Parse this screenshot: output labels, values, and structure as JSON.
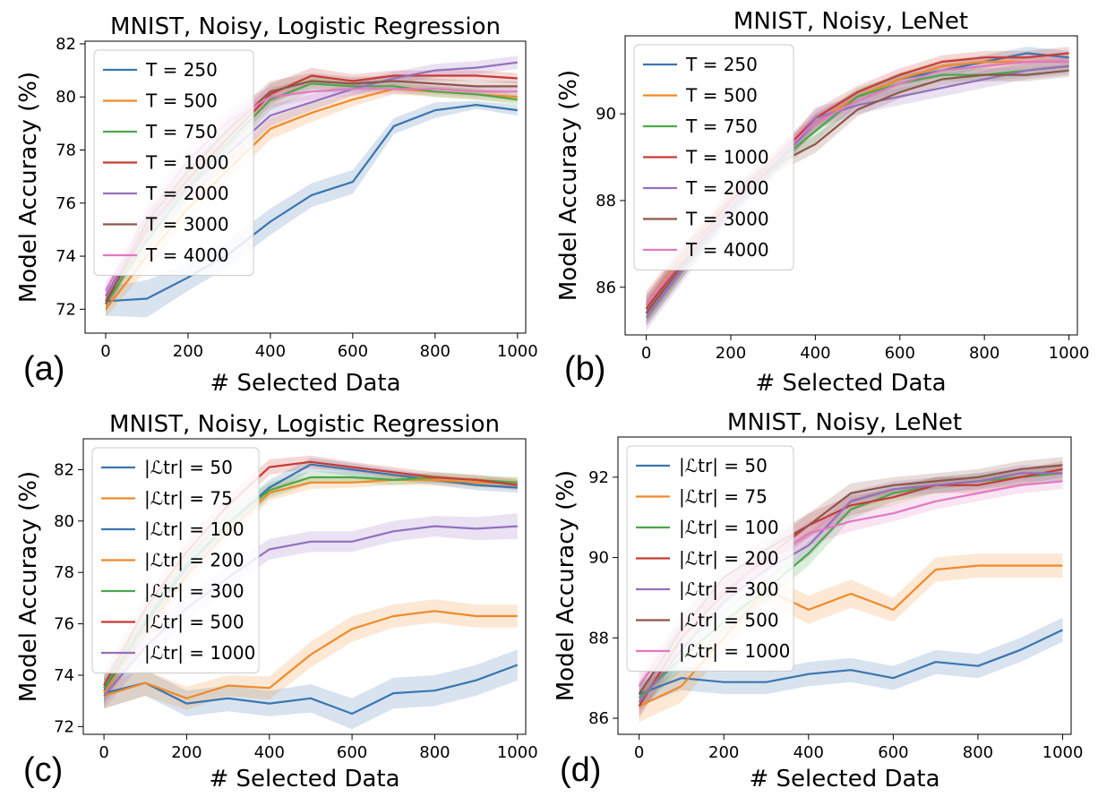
{
  "chart_data": [
    {
      "type": "line",
      "panel_label": "(a)",
      "title": "MNIST, Noisy, Logistic Regression",
      "xlabel": "# Selected Data",
      "ylabel": "Model Accuracy (%)",
      "xlim": [
        -50,
        1020
      ],
      "ylim": [
        71.1,
        82.1
      ],
      "xticks": [
        "0",
        "200",
        "400",
        "600",
        "800",
        "1000"
      ],
      "xtick_values": [
        0,
        200,
        400,
        600,
        800,
        1000
      ],
      "yticks": [
        "72",
        "74",
        "76",
        "78",
        "80",
        "82"
      ],
      "ytick_values": [
        72,
        74,
        76,
        78,
        80,
        82
      ],
      "legend_position": "upper-left",
      "x": [
        0,
        100,
        200,
        300,
        400,
        500,
        600,
        700,
        800,
        900,
        1000
      ],
      "series": [
        {
          "name": "T = 250",
          "color": "#3a75af",
          "band": [
            0.55,
            0.7,
            0.5,
            0.5,
            0.5,
            0.45,
            0.45,
            0.3,
            0.3,
            0.15,
            0.2
          ],
          "values": [
            72.3,
            72.4,
            73.2,
            74.1,
            75.3,
            76.3,
            76.8,
            78.9,
            79.5,
            79.7,
            79.5
          ]
        },
        {
          "name": "T = 500",
          "color": "#f08a28",
          "band": [
            0.3,
            0.5,
            0.5,
            0.45,
            0.4,
            0.35,
            0.25,
            0.2,
            0.2,
            0.2,
            0.2
          ],
          "values": [
            72.0,
            74.0,
            75.8,
            77.3,
            78.8,
            79.4,
            79.9,
            80.3,
            80.2,
            80.1,
            80.0
          ]
        },
        {
          "name": "T = 750",
          "color": "#4aa84a",
          "band": [
            0.3,
            0.5,
            0.5,
            0.45,
            0.4,
            0.3,
            0.25,
            0.2,
            0.2,
            0.2,
            0.2
          ],
          "values": [
            72.2,
            74.6,
            76.6,
            78.3,
            79.9,
            80.5,
            80.4,
            80.4,
            80.2,
            80.1,
            79.9
          ]
        },
        {
          "name": "T = 1000",
          "color": "#c83a35",
          "band": [
            0.3,
            0.5,
            0.5,
            0.45,
            0.4,
            0.3,
            0.25,
            0.2,
            0.2,
            0.2,
            0.2
          ],
          "values": [
            72.3,
            75.0,
            76.9,
            78.5,
            80.1,
            80.8,
            80.6,
            80.8,
            80.8,
            80.8,
            80.7
          ]
        },
        {
          "name": "T = 2000",
          "color": "#9470bd",
          "band": [
            0.3,
            0.5,
            0.5,
            0.45,
            0.4,
            0.3,
            0.25,
            0.25,
            0.25,
            0.25,
            0.25
          ],
          "values": [
            72.5,
            75.2,
            76.6,
            77.9,
            79.3,
            79.8,
            80.3,
            80.7,
            81.0,
            81.1,
            81.3
          ]
        },
        {
          "name": "T = 3000",
          "color": "#8c564b",
          "band": [
            0.3,
            0.5,
            0.5,
            0.45,
            0.4,
            0.3,
            0.25,
            0.2,
            0.2,
            0.2,
            0.2
          ],
          "values": [
            72.2,
            75.3,
            77.2,
            78.8,
            80.2,
            80.6,
            80.5,
            80.6,
            80.5,
            80.4,
            80.4
          ]
        },
        {
          "name": "T = 4000",
          "color": "#e377c2",
          "band": [
            0.3,
            0.5,
            0.5,
            0.45,
            0.4,
            0.3,
            0.25,
            0.2,
            0.2,
            0.2,
            0.2
          ],
          "values": [
            72.7,
            75.5,
            77.6,
            79.1,
            80.0,
            80.2,
            80.3,
            80.3,
            80.3,
            80.2,
            80.2
          ]
        }
      ]
    },
    {
      "type": "line",
      "panel_label": "(b)",
      "title": "MNIST, Noisy, LeNet",
      "xlabel": "# Selected Data",
      "ylabel": "Model Accuracy (%)",
      "xlim": [
        -50,
        1020
      ],
      "ylim": [
        84.9,
        91.8
      ],
      "xticks": [
        "0",
        "200",
        "400",
        "600",
        "800",
        "1000"
      ],
      "xtick_values": [
        0,
        200,
        400,
        600,
        800,
        1000
      ],
      "yticks": [
        "86",
        "88",
        "90"
      ],
      "ytick_values": [
        86,
        88,
        90
      ],
      "legend_position": "upper-left",
      "x": [
        0,
        100,
        200,
        300,
        400,
        500,
        600,
        700,
        800,
        900,
        1000
      ],
      "series": [
        {
          "name": "T = 250",
          "color": "#3a75af",
          "band": [
            0.3,
            0.3,
            0.25,
            0.2,
            0.2,
            0.15,
            0.15,
            0.15,
            0.15,
            0.15,
            0.15
          ],
          "values": [
            85.5,
            86.8,
            87.9,
            88.8,
            89.8,
            90.4,
            90.8,
            91.0,
            91.2,
            91.4,
            91.3
          ]
        },
        {
          "name": "T = 500",
          "color": "#f08a28",
          "band": [
            0.3,
            0.3,
            0.25,
            0.2,
            0.2,
            0.15,
            0.15,
            0.15,
            0.15,
            0.15,
            0.15
          ],
          "values": [
            85.6,
            86.9,
            88.0,
            88.9,
            89.8,
            90.4,
            90.8,
            91.1,
            91.2,
            91.2,
            91.2
          ]
        },
        {
          "name": "T = 750",
          "color": "#4aa84a",
          "band": [
            0.3,
            0.3,
            0.25,
            0.2,
            0.25,
            0.2,
            0.2,
            0.15,
            0.15,
            0.15,
            0.15
          ],
          "values": [
            85.4,
            86.7,
            87.9,
            88.8,
            89.6,
            90.4,
            90.7,
            90.9,
            90.9,
            91.0,
            91.1
          ]
        },
        {
          "name": "T = 1000",
          "color": "#c83a35",
          "band": [
            0.3,
            0.3,
            0.25,
            0.2,
            0.2,
            0.15,
            0.15,
            0.15,
            0.15,
            0.15,
            0.15
          ],
          "values": [
            85.5,
            86.8,
            88.0,
            88.9,
            89.9,
            90.5,
            90.9,
            91.2,
            91.3,
            91.3,
            91.4
          ]
        },
        {
          "name": "T = 2000",
          "color": "#9470bd",
          "band": [
            0.3,
            0.3,
            0.25,
            0.2,
            0.25,
            0.2,
            0.2,
            0.2,
            0.2,
            0.2,
            0.2
          ],
          "values": [
            85.3,
            86.6,
            87.8,
            88.7,
            89.9,
            90.2,
            90.4,
            90.6,
            90.8,
            91.0,
            91.1
          ]
        },
        {
          "name": "T = 3000",
          "color": "#8c564b",
          "band": [
            0.3,
            0.3,
            0.25,
            0.2,
            0.2,
            0.15,
            0.15,
            0.15,
            0.15,
            0.15,
            0.15
          ],
          "values": [
            85.4,
            86.7,
            87.9,
            88.8,
            89.3,
            90.1,
            90.5,
            90.8,
            90.9,
            90.9,
            91.0
          ]
        },
        {
          "name": "T = 4000",
          "color": "#e377c2",
          "band": [
            0.3,
            0.3,
            0.25,
            0.2,
            0.2,
            0.15,
            0.15,
            0.15,
            0.15,
            0.15,
            0.15
          ],
          "values": [
            85.6,
            86.8,
            87.9,
            88.9,
            89.8,
            90.3,
            90.7,
            91.0,
            91.1,
            91.2,
            91.2
          ]
        }
      ]
    },
    {
      "type": "line",
      "panel_label": "(c)",
      "title": "MNIST, Noisy, Logistic Regression",
      "xlabel": "# Selected Data",
      "ylabel": "Model Accuracy (%)",
      "xlim": [
        -50,
        1020
      ],
      "ylim": [
        71.7,
        83.2
      ],
      "xticks": [
        "0",
        "200",
        "400",
        "600",
        "800",
        "1000"
      ],
      "xtick_values": [
        0,
        200,
        400,
        600,
        800,
        1000
      ],
      "yticks": [
        "72",
        "74",
        "76",
        "78",
        "80",
        "82"
      ],
      "ytick_values": [
        72,
        74,
        76,
        78,
        80,
        82
      ],
      "legend_position": "upper-left",
      "x": [
        0,
        100,
        200,
        300,
        400,
        500,
        600,
        700,
        800,
        900,
        1000
      ],
      "series": [
        {
          "name": "|ℒtr| = 50",
          "color": "#3a75af",
          "band": [
            0.6,
            0.5,
            0.5,
            0.5,
            0.5,
            0.55,
            0.6,
            0.6,
            0.6,
            0.6,
            0.6
          ],
          "values": [
            73.3,
            73.7,
            72.9,
            73.1,
            72.9,
            73.1,
            72.5,
            73.3,
            73.4,
            73.8,
            74.4
          ]
        },
        {
          "name": "|ℒtr| = 75",
          "color": "#f08a28",
          "band": [
            0.5,
            0.5,
            0.45,
            0.4,
            0.45,
            0.5,
            0.5,
            0.45,
            0.45,
            0.45,
            0.45
          ],
          "values": [
            73.2,
            73.7,
            73.1,
            73.6,
            73.5,
            74.8,
            75.8,
            76.3,
            76.5,
            76.3,
            76.3
          ]
        },
        {
          "name": "|ℒtr| = 100",
          "color": "#3a75af",
          "band": [
            0.5,
            0.5,
            0.45,
            0.4,
            0.3,
            0.25,
            0.25,
            0.2,
            0.2,
            0.2,
            0.2
          ],
          "values": [
            73.4,
            76.0,
            78.2,
            79.9,
            81.3,
            82.2,
            82.0,
            81.8,
            81.6,
            81.4,
            81.3
          ]
        },
        {
          "name": "|ℒtr| = 200",
          "color": "#f08a28",
          "band": [
            0.5,
            0.5,
            0.45,
            0.4,
            0.3,
            0.25,
            0.2,
            0.2,
            0.2,
            0.2,
            0.2
          ],
          "values": [
            73.3,
            75.8,
            77.9,
            79.6,
            81.1,
            81.5,
            81.5,
            81.6,
            81.6,
            81.5,
            81.5
          ]
        },
        {
          "name": "|ℒtr| = 300",
          "color": "#4aa84a",
          "band": [
            0.5,
            0.5,
            0.45,
            0.4,
            0.3,
            0.25,
            0.2,
            0.2,
            0.2,
            0.2,
            0.2
          ],
          "values": [
            73.5,
            76.1,
            78.3,
            79.9,
            81.2,
            81.7,
            81.7,
            81.6,
            81.7,
            81.6,
            81.5
          ]
        },
        {
          "name": "|ℒtr| = 500",
          "color": "#c83a35",
          "band": [
            0.5,
            0.5,
            0.45,
            0.4,
            0.3,
            0.25,
            0.2,
            0.2,
            0.2,
            0.2,
            0.2
          ],
          "values": [
            73.6,
            76.6,
            78.8,
            80.6,
            82.1,
            82.3,
            82.1,
            81.9,
            81.7,
            81.6,
            81.4
          ]
        },
        {
          "name": "|ℒtr| = 1000",
          "color": "#9470bd",
          "band": [
            0.5,
            0.5,
            0.5,
            0.45,
            0.4,
            0.4,
            0.4,
            0.4,
            0.4,
            0.45,
            0.5
          ],
          "values": [
            73.2,
            75.1,
            76.6,
            77.8,
            78.9,
            79.2,
            79.2,
            79.6,
            79.8,
            79.7,
            79.8
          ]
        }
      ]
    },
    {
      "type": "line",
      "panel_label": "(d)",
      "title": "MNIST, Noisy, LeNet",
      "xlabel": "# Selected Data",
      "ylabel": "Model Accuracy (%)",
      "xlim": [
        -50,
        1020
      ],
      "ylim": [
        85.6,
        93.0
      ],
      "xticks": [
        "0",
        "200",
        "400",
        "600",
        "800",
        "1000"
      ],
      "xtick_values": [
        0,
        200,
        400,
        600,
        800,
        1000
      ],
      "yticks": [
        "86",
        "88",
        "90",
        "92"
      ],
      "ytick_values": [
        86,
        88,
        90,
        92
      ],
      "legend_position": "upper-left",
      "x": [
        0,
        100,
        200,
        300,
        400,
        500,
        600,
        700,
        800,
        900,
        1000
      ],
      "series": [
        {
          "name": "|ℒtr| = 50",
          "color": "#3a75af",
          "band": [
            0.3,
            0.3,
            0.3,
            0.3,
            0.3,
            0.3,
            0.3,
            0.3,
            0.3,
            0.3,
            0.3
          ],
          "values": [
            86.6,
            87.0,
            86.9,
            86.9,
            87.1,
            87.2,
            87.0,
            87.4,
            87.3,
            87.7,
            88.2
          ]
        },
        {
          "name": "|ℒtr| = 75",
          "color": "#f08a28",
          "band": [
            0.4,
            0.4,
            0.35,
            0.35,
            0.35,
            0.35,
            0.3,
            0.3,
            0.3,
            0.3,
            0.3
          ],
          "values": [
            86.3,
            86.8,
            88.0,
            89.2,
            88.7,
            89.1,
            88.7,
            89.7,
            89.8,
            89.8,
            89.8
          ]
        },
        {
          "name": "|ℒtr| = 100",
          "color": "#4aa84a",
          "band": [
            0.3,
            0.3,
            0.3,
            0.3,
            0.3,
            0.25,
            0.2,
            0.2,
            0.2,
            0.2,
            0.2
          ],
          "values": [
            86.5,
            87.5,
            88.4,
            89.2,
            90.1,
            91.2,
            91.6,
            91.8,
            91.9,
            92.0,
            92.1
          ]
        },
        {
          "name": "|ℒtr| = 200",
          "color": "#c83a35",
          "band": [
            0.3,
            0.3,
            0.3,
            0.3,
            0.3,
            0.25,
            0.2,
            0.2,
            0.2,
            0.2,
            0.2
          ],
          "values": [
            86.3,
            88.0,
            89.1,
            90.0,
            90.8,
            91.3,
            91.5,
            91.8,
            91.8,
            92.0,
            92.2
          ]
        },
        {
          "name": "|ℒtr| = 300",
          "color": "#9470bd",
          "band": [
            0.3,
            0.3,
            0.3,
            0.3,
            0.3,
            0.25,
            0.2,
            0.2,
            0.2,
            0.2,
            0.2
          ],
          "values": [
            86.4,
            87.7,
            88.9,
            89.7,
            90.3,
            91.4,
            91.7,
            91.8,
            91.9,
            92.1,
            92.1
          ]
        },
        {
          "name": "|ℒtr| = 500",
          "color": "#8c564b",
          "band": [
            0.3,
            0.3,
            0.3,
            0.3,
            0.3,
            0.25,
            0.2,
            0.2,
            0.2,
            0.2,
            0.2
          ],
          "values": [
            86.6,
            88.2,
            89.5,
            90.2,
            90.8,
            91.6,
            91.8,
            91.9,
            92.0,
            92.2,
            92.3
          ]
        },
        {
          "name": "|ℒtr| = 1000",
          "color": "#e377c2",
          "band": [
            0.3,
            0.3,
            0.3,
            0.3,
            0.3,
            0.25,
            0.2,
            0.2,
            0.2,
            0.2,
            0.2
          ],
          "values": [
            86.8,
            88.3,
            89.2,
            89.9,
            90.6,
            90.9,
            91.1,
            91.4,
            91.6,
            91.8,
            91.9
          ]
        }
      ]
    }
  ]
}
